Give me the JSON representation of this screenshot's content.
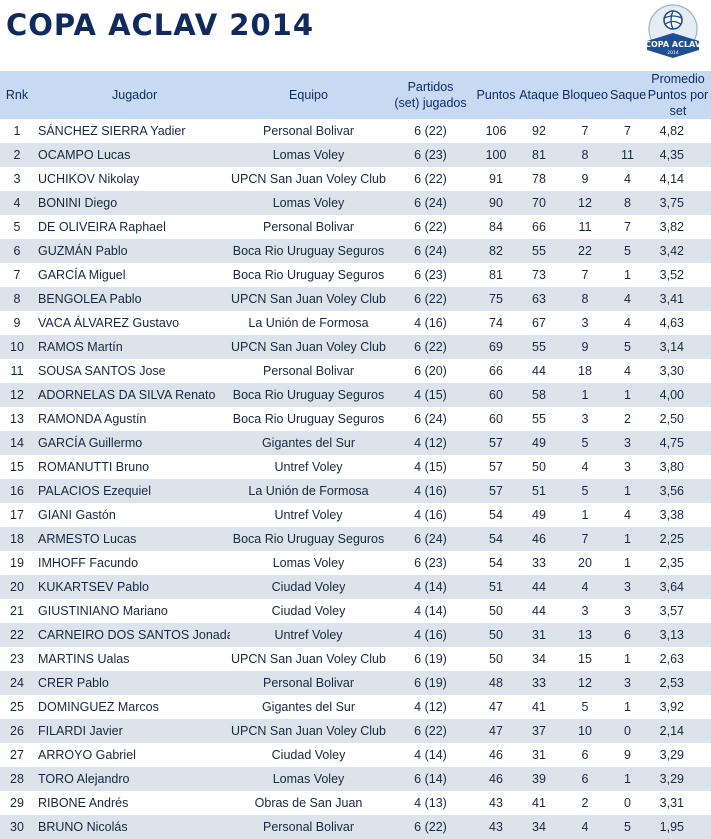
{
  "title": "COPA ACLAV 2014",
  "logo": {
    "text_top": "COPA ACLAV",
    "text_bottom": "2014",
    "icon": "volleyball-icon"
  },
  "colors": {
    "title": "#102a5c",
    "header_bg": "#c6dbf3",
    "stripe": "#dde3ea",
    "logo_blue": "#1f4e93"
  },
  "columns": {
    "rank": "Rnk",
    "player": "Jugador",
    "team": "Equipo",
    "matches_line1": "Partidos",
    "matches_line2": "(set) jugados",
    "points": "Puntos",
    "attack": "Ataque",
    "block": "Bloqueo",
    "serve": "Saque",
    "avg_line1": "Promedio",
    "avg_line2": "Puntos por set"
  },
  "rows": [
    {
      "rank": "1",
      "player": "SÁNCHEZ SIERRA Yadier",
      "team": "Personal Bolivar",
      "matches": "6 (22)",
      "points": "106",
      "attack": "92",
      "block": "7",
      "serve": "7",
      "avg": "4,82"
    },
    {
      "rank": "2",
      "player": "OCAMPO Lucas",
      "team": "Lomas Voley",
      "matches": "6 (23)",
      "points": "100",
      "attack": "81",
      "block": "8",
      "serve": "11",
      "avg": "4,35"
    },
    {
      "rank": "3",
      "player": "UCHIKOV Nikolay",
      "team": "UPCN San Juan Voley Club",
      "matches": "6 (22)",
      "points": "91",
      "attack": "78",
      "block": "9",
      "serve": "4",
      "avg": "4,14"
    },
    {
      "rank": "4",
      "player": "BONINI Diego",
      "team": "Lomas Voley",
      "matches": "6 (24)",
      "points": "90",
      "attack": "70",
      "block": "12",
      "serve": "8",
      "avg": "3,75"
    },
    {
      "rank": "5",
      "player": "DE OLIVEIRA Raphael",
      "team": "Personal Bolivar",
      "matches": "6 (22)",
      "points": "84",
      "attack": "66",
      "block": "11",
      "serve": "7",
      "avg": "3,82"
    },
    {
      "rank": "6",
      "player": "GUZMÁN Pablo",
      "team": "Boca Rio Uruguay Seguros",
      "matches": "6 (24)",
      "points": "82",
      "attack": "55",
      "block": "22",
      "serve": "5",
      "avg": "3,42"
    },
    {
      "rank": "7",
      "player": "GARCÍA Miguel",
      "team": "Boca Rio Uruguay Seguros",
      "matches": "6 (23)",
      "points": "81",
      "attack": "73",
      "block": "7",
      "serve": "1",
      "avg": "3,52"
    },
    {
      "rank": "8",
      "player": "BENGOLEA Pablo",
      "team": "UPCN San Juan Voley Club",
      "matches": "6 (22)",
      "points": "75",
      "attack": "63",
      "block": "8",
      "serve": "4",
      "avg": "3,41"
    },
    {
      "rank": "9",
      "player": "VACA ÁLVAREZ Gustavo",
      "team": "La Unión de Formosa",
      "matches": "4 (16)",
      "points": "74",
      "attack": "67",
      "block": "3",
      "serve": "4",
      "avg": "4,63"
    },
    {
      "rank": "10",
      "player": "RAMOS Martín",
      "team": "UPCN San Juan Voley Club",
      "matches": "6 (22)",
      "points": "69",
      "attack": "55",
      "block": "9",
      "serve": "5",
      "avg": "3,14"
    },
    {
      "rank": "11",
      "player": "SOUSA SANTOS Jose",
      "team": "Personal Bolivar",
      "matches": "6 (20)",
      "points": "66",
      "attack": "44",
      "block": "18",
      "serve": "4",
      "avg": "3,30"
    },
    {
      "rank": "12",
      "player": "ADORNELAS DA SILVA Renato",
      "team": "Boca Rio Uruguay Seguros",
      "matches": "4 (15)",
      "points": "60",
      "attack": "58",
      "block": "1",
      "serve": "1",
      "avg": "4,00"
    },
    {
      "rank": "13",
      "player": "RAMONDA Agustín",
      "team": "Boca Rio Uruguay Seguros",
      "matches": "6 (24)",
      "points": "60",
      "attack": "55",
      "block": "3",
      "serve": "2",
      "avg": "2,50"
    },
    {
      "rank": "14",
      "player": "GARCÍA Guillermo",
      "team": "Gigantes del Sur",
      "matches": "4 (12)",
      "points": "57",
      "attack": "49",
      "block": "5",
      "serve": "3",
      "avg": "4,75"
    },
    {
      "rank": "15",
      "player": "ROMANUTTI Bruno",
      "team": "Untref Voley",
      "matches": "4 (15)",
      "points": "57",
      "attack": "50",
      "block": "4",
      "serve": "3",
      "avg": "3,80"
    },
    {
      "rank": "16",
      "player": "PALACIOS Ezequiel",
      "team": "La Unión de Formosa",
      "matches": "4 (16)",
      "points": "57",
      "attack": "51",
      "block": "5",
      "serve": "1",
      "avg": "3,56"
    },
    {
      "rank": "17",
      "player": "GIANI Gastón",
      "team": "Untref Voley",
      "matches": "4 (16)",
      "points": "54",
      "attack": "49",
      "block": "1",
      "serve": "4",
      "avg": "3,38"
    },
    {
      "rank": "18",
      "player": "ARMESTO Lucas",
      "team": "Boca Rio Uruguay Seguros",
      "matches": "6 (24)",
      "points": "54",
      "attack": "46",
      "block": "7",
      "serve": "1",
      "avg": "2,25"
    },
    {
      "rank": "19",
      "player": "IMHOFF Facundo",
      "team": "Lomas Voley",
      "matches": "6 (23)",
      "points": "54",
      "attack": "33",
      "block": "20",
      "serve": "1",
      "avg": "2,35"
    },
    {
      "rank": "20",
      "player": "KUKARTSEV Pablo",
      "team": "Ciudad Voley",
      "matches": "4 (14)",
      "points": "51",
      "attack": "44",
      "block": "4",
      "serve": "3",
      "avg": "3,64"
    },
    {
      "rank": "21",
      "player": "GIUSTINIANO Mariano",
      "team": "Ciudad Voley",
      "matches": "4 (14)",
      "points": "50",
      "attack": "44",
      "block": "3",
      "serve": "3",
      "avg": "3,57"
    },
    {
      "rank": "22",
      "player": "CARNEIRO DOS SANTOS Jonadabe",
      "team": "Untref Voley",
      "matches": "4 (16)",
      "points": "50",
      "attack": "31",
      "block": "13",
      "serve": "6",
      "avg": "3,13"
    },
    {
      "rank": "23",
      "player": "MARTINS Ualas",
      "team": "UPCN San Juan Voley Club",
      "matches": "6 (19)",
      "points": "50",
      "attack": "34",
      "block": "15",
      "serve": "1",
      "avg": "2,63"
    },
    {
      "rank": "24",
      "player": "CRER Pablo",
      "team": "Personal Bolivar",
      "matches": "6 (19)",
      "points": "48",
      "attack": "33",
      "block": "12",
      "serve": "3",
      "avg": "2,53"
    },
    {
      "rank": "25",
      "player": "DOMINGUEZ Marcos",
      "team": "Gigantes del Sur",
      "matches": "4 (12)",
      "points": "47",
      "attack": "41",
      "block": "5",
      "serve": "1",
      "avg": "3,92"
    },
    {
      "rank": "26",
      "player": "FILARDI Javier",
      "team": "UPCN San Juan Voley Club",
      "matches": "6 (22)",
      "points": "47",
      "attack": "37",
      "block": "10",
      "serve": "0",
      "avg": "2,14"
    },
    {
      "rank": "27",
      "player": "ARROYO Gabriel",
      "team": "Ciudad Voley",
      "matches": "4 (14)",
      "points": "46",
      "attack": "31",
      "block": "6",
      "serve": "9",
      "avg": "3,29"
    },
    {
      "rank": "28",
      "player": "TORO Alejandro",
      "team": "Lomas Voley",
      "matches": "6 (14)",
      "points": "46",
      "attack": "39",
      "block": "6",
      "serve": "1",
      "avg": "3,29"
    },
    {
      "rank": "29",
      "player": "RIBONE Andrés",
      "team": "Obras de San Juan",
      "matches": "4 (13)",
      "points": "43",
      "attack": "41",
      "block": "2",
      "serve": "0",
      "avg": "3,31"
    },
    {
      "rank": "30",
      "player": "BRUNO Nicolás",
      "team": "Personal Bolivar",
      "matches": "6 (22)",
      "points": "43",
      "attack": "34",
      "block": "4",
      "serve": "5",
      "avg": "1,95"
    }
  ]
}
